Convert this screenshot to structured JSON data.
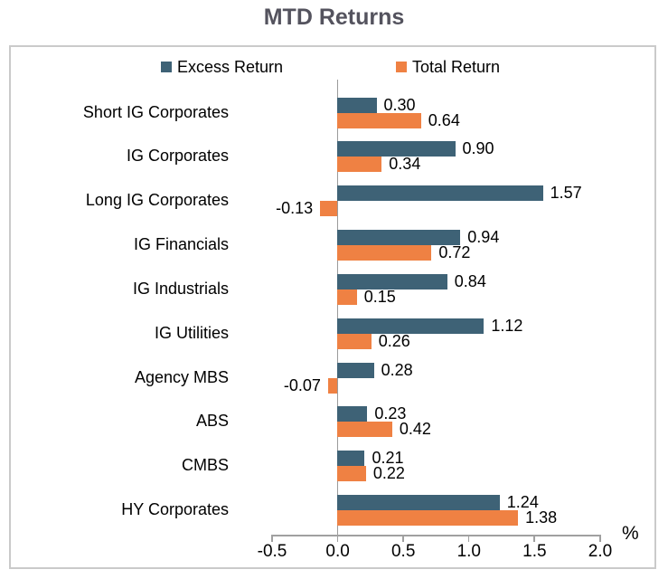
{
  "chart": {
    "title": "MTD Returns"
  },
  "chart_data": {
    "type": "bar",
    "orientation": "horizontal",
    "title": "MTD Returns",
    "categories": [
      "Short IG Corporates",
      "IG Corporates",
      "Long IG Corporates",
      "IG Financials",
      "IG Industrials",
      "IG Utilities",
      "Agency MBS",
      "ABS",
      "CMBS",
      "HY Corporates"
    ],
    "series": [
      {
        "name": "Excess Return",
        "color": "#3E6276",
        "values": [
          0.3,
          0.9,
          1.57,
          0.94,
          0.84,
          1.12,
          0.28,
          0.23,
          0.21,
          1.24
        ]
      },
      {
        "name": "Total Return",
        "color": "#EF8143",
        "values": [
          0.64,
          0.34,
          -0.13,
          0.72,
          0.15,
          0.26,
          -0.07,
          0.42,
          0.22,
          1.38
        ]
      }
    ],
    "xlabel": "%",
    "x_ticks": [
      "-0.5",
      "0.0",
      "0.5",
      "1.0",
      "1.5",
      "2.0"
    ],
    "xlim": [
      -0.5,
      2.0
    ],
    "legend_position": "top",
    "grid": false,
    "value_label_format": "0.00"
  },
  "colors": {
    "excess_return": "#3E6276",
    "total_return": "#EF8143",
    "title_text": "#54535E",
    "axis": "#A0A0A0",
    "box_border": "#CACACA",
    "label_text": "#000000"
  }
}
